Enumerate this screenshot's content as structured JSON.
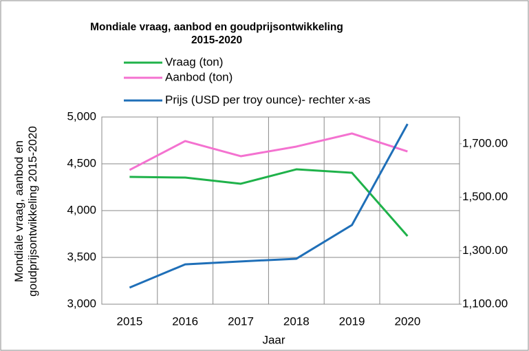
{
  "chart_data": {
    "type": "line",
    "title": "Mondiale vraag, aanbod en goudprijsontwikkeling 2015-2020",
    "ylabel": "Mondiale vraag, aanbod en goudprijsontwikkeling 2015-2020",
    "xlabel": "Jaar",
    "categories": [
      "2015",
      "2016",
      "2017",
      "2018",
      "2019",
      "2020"
    ],
    "series": [
      {
        "name": "Vraag (ton)",
        "color": "#1fb24a",
        "values": [
          4360,
          4353,
          4287,
          4441,
          4404,
          3728
        ]
      },
      {
        "name": "Aanbod (ton)",
        "color": "#f472d0",
        "values": [
          4434,
          4743,
          4581,
          4684,
          4824,
          4632
        ]
      },
      {
        "name": "Prijs (USD per troy ounce)- rechter x-as",
        "color": "#1f6fb8",
        "axis": "y2",
        "values": [
          1162,
          1249,
          1260,
          1270,
          1396,
          1774
        ]
      }
    ],
    "ylim": [
      3000,
      5000
    ],
    "yticks": [
      {
        "value": 3000,
        "label": "3,000"
      },
      {
        "value": 3500,
        "label": "3,500"
      },
      {
        "value": 4000,
        "label": "4,000"
      },
      {
        "value": 4500,
        "label": "4,500"
      },
      {
        "value": 5000,
        "label": "5,000"
      }
    ],
    "y2lim": [
      1100,
      1800
    ],
    "y2ticks": [
      {
        "value": 1100,
        "label": "1,100.00"
      },
      {
        "value": 1300,
        "label": "1,300.00"
      },
      {
        "value": 1500,
        "label": "1,500.00"
      },
      {
        "value": 1700,
        "label": "1,700.00"
      }
    ],
    "grid": true
  }
}
